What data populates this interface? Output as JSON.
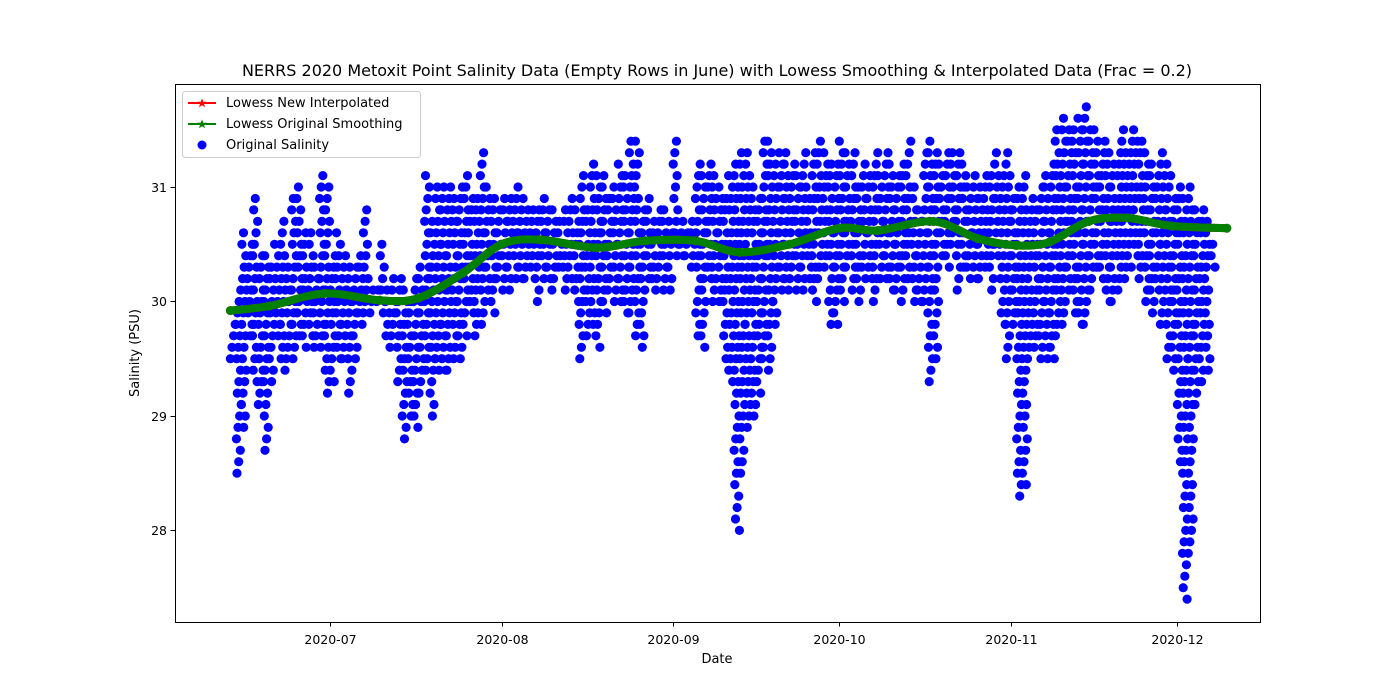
{
  "chart_data": {
    "type": "scatter",
    "title": "NERRS 2020 Metoxit Point Salinity Data (Empty Rows in June) with Lowess Smoothing & Interpolated Data (Frac = 0.2)",
    "xlabel": "Date",
    "ylabel": "Salinity (PSU)",
    "xlim": [
      "2020-06-03",
      "2020-12-16"
    ],
    "ylim": [
      27.2,
      31.9
    ],
    "x_ticks": [
      "2020-07-01",
      "2020-08-01",
      "2020-09-01",
      "2020-10-01",
      "2020-11-01",
      "2020-12-01"
    ],
    "x_tick_labels": [
      "2020-07",
      "2020-08",
      "2020-09",
      "2020-10",
      "2020-11",
      "2020-12"
    ],
    "y_ticks": [
      28,
      29,
      30,
      31
    ],
    "y_tick_labels": [
      "28",
      "29",
      "30",
      "31"
    ],
    "grid": false,
    "legend_position": "upper-left",
    "series": [
      {
        "name": "Lowess New Interpolated",
        "type": "line",
        "marker": "star",
        "color": "#ff0000",
        "x": [
          "2020-06-13",
          "2020-06-20",
          "2020-06-30",
          "2020-07-10",
          "2020-07-17",
          "2020-07-25",
          "2020-08-01",
          "2020-08-08",
          "2020-08-18",
          "2020-08-27",
          "2020-09-05",
          "2020-09-13",
          "2020-09-22",
          "2020-10-01",
          "2020-10-08",
          "2020-10-18",
          "2020-10-26",
          "2020-11-02",
          "2020-11-08",
          "2020-11-15",
          "2020-11-22",
          "2020-11-30",
          "2020-12-10"
        ],
        "y": [
          29.92,
          29.96,
          30.07,
          30.01,
          30.03,
          30.25,
          30.5,
          30.54,
          30.47,
          30.53,
          30.53,
          30.43,
          30.5,
          30.64,
          30.62,
          30.7,
          30.55,
          30.49,
          30.52,
          30.7,
          30.73,
          30.66,
          30.64
        ]
      },
      {
        "name": "Lowess Original Smoothing",
        "type": "line",
        "marker": "star",
        "color": "#008000",
        "x": [
          "2020-06-13",
          "2020-06-20",
          "2020-06-30",
          "2020-07-10",
          "2020-07-17",
          "2020-07-25",
          "2020-08-01",
          "2020-08-08",
          "2020-08-18",
          "2020-08-27",
          "2020-09-05",
          "2020-09-13",
          "2020-09-22",
          "2020-10-01",
          "2020-10-08",
          "2020-10-18",
          "2020-10-26",
          "2020-11-02",
          "2020-11-08",
          "2020-11-15",
          "2020-11-22",
          "2020-11-30",
          "2020-12-10"
        ],
        "y": [
          29.92,
          29.96,
          30.07,
          30.01,
          30.03,
          30.25,
          30.5,
          30.54,
          30.47,
          30.53,
          30.53,
          30.43,
          30.5,
          30.64,
          30.62,
          30.7,
          30.55,
          30.49,
          30.52,
          30.7,
          30.73,
          30.66,
          30.64
        ]
      },
      {
        "name": "Original Salinity",
        "type": "scatter",
        "marker": "circle",
        "color": "#0000ff",
        "daily_x": [
          "2020-06-13",
          "2020-06-14",
          "2020-06-15",
          "2020-06-16",
          "2020-06-17",
          "2020-06-18",
          "2020-06-19",
          "2020-06-20",
          "2020-06-21",
          "2020-06-22",
          "2020-06-23",
          "2020-06-24",
          "2020-06-25",
          "2020-06-26",
          "2020-06-27",
          "2020-06-28",
          "2020-06-29",
          "2020-06-30",
          "2020-07-01",
          "2020-07-02",
          "2020-07-03",
          "2020-07-04",
          "2020-07-05",
          "2020-07-06",
          "2020-07-07",
          "2020-07-08",
          "2020-07-09",
          "2020-07-10",
          "2020-07-11",
          "2020-07-12",
          "2020-07-13",
          "2020-07-14",
          "2020-07-15",
          "2020-07-16",
          "2020-07-17",
          "2020-07-18",
          "2020-07-19",
          "2020-07-20",
          "2020-07-21",
          "2020-07-22",
          "2020-07-23",
          "2020-07-24",
          "2020-07-25",
          "2020-07-26",
          "2020-07-27",
          "2020-07-28",
          "2020-07-29",
          "2020-07-30",
          "2020-07-31",
          "2020-08-01",
          "2020-08-02",
          "2020-08-03",
          "2020-08-04",
          "2020-08-05",
          "2020-08-06",
          "2020-08-07",
          "2020-08-08",
          "2020-08-09",
          "2020-08-10",
          "2020-08-11",
          "2020-08-12",
          "2020-08-13",
          "2020-08-14",
          "2020-08-15",
          "2020-08-16",
          "2020-08-17",
          "2020-08-18",
          "2020-08-19",
          "2020-08-20",
          "2020-08-21",
          "2020-08-22",
          "2020-08-23",
          "2020-08-24",
          "2020-08-25",
          "2020-08-26",
          "2020-08-27",
          "2020-08-28",
          "2020-08-29",
          "2020-08-30",
          "2020-08-31",
          "2020-09-01",
          "2020-09-02",
          "2020-09-03",
          "2020-09-04",
          "2020-09-05",
          "2020-09-06",
          "2020-09-07",
          "2020-09-08",
          "2020-09-09",
          "2020-09-10",
          "2020-09-11",
          "2020-09-12",
          "2020-09-13",
          "2020-09-14",
          "2020-09-15",
          "2020-09-16",
          "2020-09-17",
          "2020-09-18",
          "2020-09-19",
          "2020-09-20",
          "2020-09-21",
          "2020-09-22",
          "2020-09-23",
          "2020-09-24",
          "2020-09-25",
          "2020-09-26",
          "2020-09-27",
          "2020-09-28",
          "2020-09-29",
          "2020-09-30",
          "2020-10-01",
          "2020-10-02",
          "2020-10-03",
          "2020-10-04",
          "2020-10-05",
          "2020-10-06",
          "2020-10-07",
          "2020-10-08",
          "2020-10-09",
          "2020-10-10",
          "2020-10-11",
          "2020-10-12",
          "2020-10-13",
          "2020-10-14",
          "2020-10-15",
          "2020-10-16",
          "2020-10-17",
          "2020-10-18",
          "2020-10-19",
          "2020-10-20",
          "2020-10-21",
          "2020-10-22",
          "2020-10-23",
          "2020-10-24",
          "2020-10-25",
          "2020-10-26",
          "2020-10-27",
          "2020-10-28",
          "2020-10-29",
          "2020-10-30",
          "2020-10-31",
          "2020-11-01",
          "2020-11-02",
          "2020-11-03",
          "2020-11-04",
          "2020-11-05",
          "2020-11-06",
          "2020-11-07",
          "2020-11-08",
          "2020-11-09",
          "2020-11-10",
          "2020-11-11",
          "2020-11-12",
          "2020-11-13",
          "2020-11-14",
          "2020-11-15",
          "2020-11-16",
          "2020-11-17",
          "2020-11-18",
          "2020-11-19",
          "2020-11-20",
          "2020-11-21",
          "2020-11-22",
          "2020-11-23",
          "2020-11-24",
          "2020-11-25",
          "2020-11-26",
          "2020-11-27",
          "2020-11-28",
          "2020-11-29",
          "2020-11-30",
          "2020-12-01",
          "2020-12-02",
          "2020-12-03",
          "2020-12-04",
          "2020-12-05",
          "2020-12-06",
          "2020-12-07",
          "2020-12-08",
          "2020-12-09",
          "2020-12-10"
        ],
        "daily_min": [
          29.5,
          28.5,
          28.9,
          29.7,
          29.3,
          29.1,
          28.7,
          29.3,
          29.7,
          29.4,
          29.5,
          29.5,
          29.7,
          29.6,
          29.7,
          29.6,
          29.6,
          29.2,
          29.3,
          29.5,
          29.5,
          29.2,
          29.5,
          29.8,
          29.9,
          29.9,
          30.0,
          29.9,
          29.6,
          29.7,
          29.3,
          28.8,
          29.0,
          28.9,
          29.2,
          29.4,
          29.0,
          29.4,
          29.4,
          29.4,
          29.5,
          29.5,
          29.7,
          29.9,
          29.7,
          29.8,
          30.1,
          29.9,
          30.2,
          30.1,
          30.1,
          30.2,
          30.2,
          30.2,
          30.3,
          30.0,
          30.2,
          30.2,
          30.1,
          30.3,
          30.1,
          30.2,
          30.0,
          29.5,
          29.7,
          29.8,
          29.6,
          29.9,
          30.1,
          30.0,
          30.0,
          29.9,
          29.9,
          29.7,
          29.6,
          30.2,
          30.1,
          30.2,
          30.1,
          30.1,
          30.4,
          30.4,
          30.4,
          30.3,
          29.7,
          29.6,
          30.2,
          30.0,
          30.0,
          29.5,
          29.3,
          28.0,
          28.5,
          28.9,
          29.0,
          29.2,
          29.5,
          29.4,
          29.8,
          30.1,
          30.1,
          30.2,
          30.1,
          30.1,
          30.2,
          30.0,
          30.2,
          30.3,
          29.8,
          29.8,
          30.0,
          30.3,
          30.1,
          30.0,
          30.2,
          30.2,
          30.0,
          30.2,
          30.2,
          30.1,
          30.1,
          30.0,
          30.2,
          30.0,
          30.0,
          30.0,
          29.3,
          29.5,
          30.4,
          30.3,
          30.5,
          30.1,
          30.3,
          30.2,
          30.2,
          30.2,
          30.3,
          30.1,
          30.4,
          29.8,
          29.5,
          29.8,
          28.3,
          28.4,
          29.5,
          29.6,
          29.5,
          29.5,
          29.5,
          29.7,
          29.8,
          30.1,
          29.9,
          29.8,
          29.8,
          30.1,
          30.3,
          30.2,
          30.0,
          30.0,
          30.1,
          30.2,
          30.3,
          30.4,
          30.2,
          30.0,
          29.9,
          30.1,
          29.8,
          29.5,
          29.4,
          28.6,
          27.4,
          27.8,
          29.1,
          29.3,
          29.4,
          30.3
        ],
        "daily_max": [
          29.8,
          30.1,
          30.6,
          30.5,
          30.9,
          30.4,
          30.4,
          30.3,
          30.5,
          30.7,
          30.3,
          30.9,
          31.0,
          30.6,
          30.6,
          30.3,
          31.1,
          31.0,
          30.4,
          30.6,
          30.4,
          30.3,
          30.3,
          30.4,
          30.8,
          30.1,
          30.1,
          30.5,
          30.1,
          30.2,
          30.2,
          30.1,
          30.0,
          30.2,
          30.3,
          31.1,
          30.7,
          31.0,
          31.0,
          31.0,
          30.9,
          31.0,
          31.1,
          30.9,
          30.9,
          31.3,
          31.0,
          30.9,
          30.8,
          30.9,
          30.9,
          31.0,
          30.9,
          30.8,
          30.8,
          30.8,
          30.9,
          30.8,
          30.8,
          30.7,
          30.8,
          30.9,
          30.8,
          31.1,
          30.8,
          31.2,
          31.1,
          31.1,
          30.9,
          31.0,
          31.2,
          31.1,
          31.4,
          31.4,
          30.8,
          30.9,
          30.7,
          30.8,
          30.8,
          30.7,
          31.4,
          30.7,
          30.6,
          30.7,
          31.2,
          31.1,
          31.2,
          31.1,
          31.0,
          30.9,
          31.1,
          31.2,
          31.3,
          31.3,
          31.0,
          30.9,
          31.4,
          31.4,
          31.2,
          31.3,
          31.3,
          31.2,
          31.1,
          31.3,
          31.0,
          31.3,
          31.4,
          31.3,
          31.2,
          31.2,
          31.4,
          31.3,
          31.3,
          31.0,
          31.2,
          31.1,
          31.3,
          31.1,
          31.3,
          31.2,
          31.1,
          31.2,
          31.4,
          31.0,
          30.8,
          31.3,
          31.4,
          31.3,
          31.2,
          31.3,
          31.3,
          31.3,
          31.2,
          31.0,
          31.1,
          31.0,
          31.1,
          31.1,
          31.3,
          31.1,
          31.3,
          30.9,
          31.0,
          31.1,
          30.8,
          30.9,
          31.0,
          31.1,
          31.2,
          31.5,
          31.6,
          31.5,
          31.5,
          31.6,
          31.7,
          31.5,
          31.5,
          31.3,
          31.4,
          31.2,
          31.3,
          31.5,
          31.4,
          31.5,
          31.4,
          31.3,
          31.2,
          31.1,
          31.3,
          31.2,
          30.9,
          31.0,
          30.9,
          31.0,
          30.8,
          30.8,
          30.7,
          30.5,
          30.7,
          30.7
        ]
      }
    ]
  },
  "colors": {
    "scatter": "#0000ff",
    "smooth": "#008000",
    "interpolated": "#ff0000"
  }
}
